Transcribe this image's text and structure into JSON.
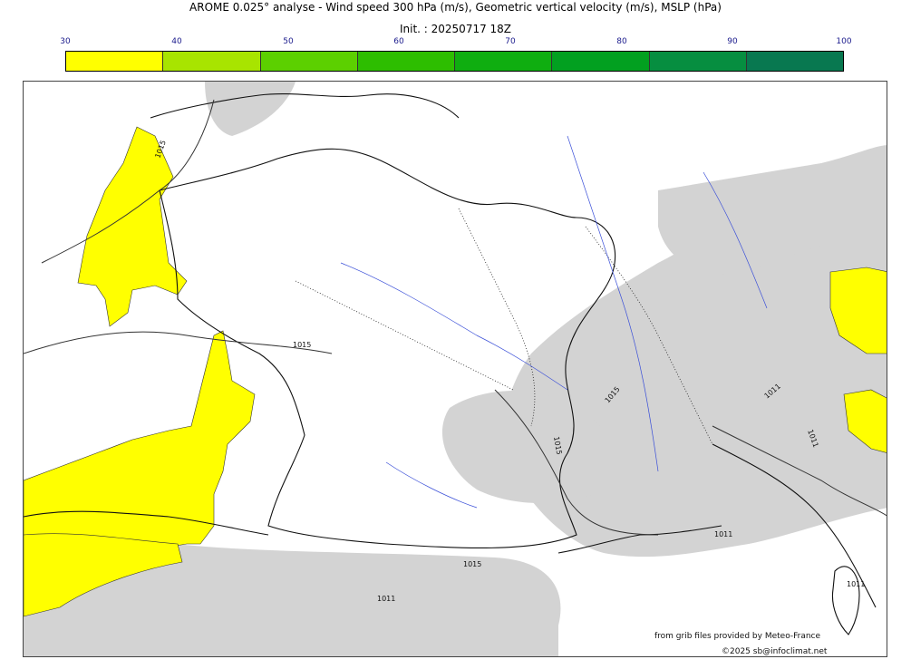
{
  "header": {
    "title": "AROME 0.025° analyse - Wind speed 300 hPa (m/s), Geometric vertical velocity (m/s), MSLP (hPa)",
    "init": "Init. : 20250717 18Z"
  },
  "colorbar": {
    "ticks": [
      "30",
      "40",
      "50",
      "60",
      "70",
      "80",
      "90",
      "100"
    ],
    "colors": [
      "#ffff00",
      "#a8e400",
      "#5cd000",
      "#2dbe00",
      "#0fae10",
      "#02a020",
      "#068e40",
      "#087850"
    ]
  },
  "map": {
    "jet_color": "#ffff00",
    "vertical_velocity_color": "#d3d3d3",
    "isobar_labels": [
      "1015",
      "1015",
      "1015",
      "1015",
      "1015",
      "1011",
      "1011",
      "1011",
      "1011",
      "1011"
    ]
  },
  "footer": {
    "source": "from grib files provided by Meteo-France",
    "copyright": "©2025 sb@infoclimat.net"
  }
}
